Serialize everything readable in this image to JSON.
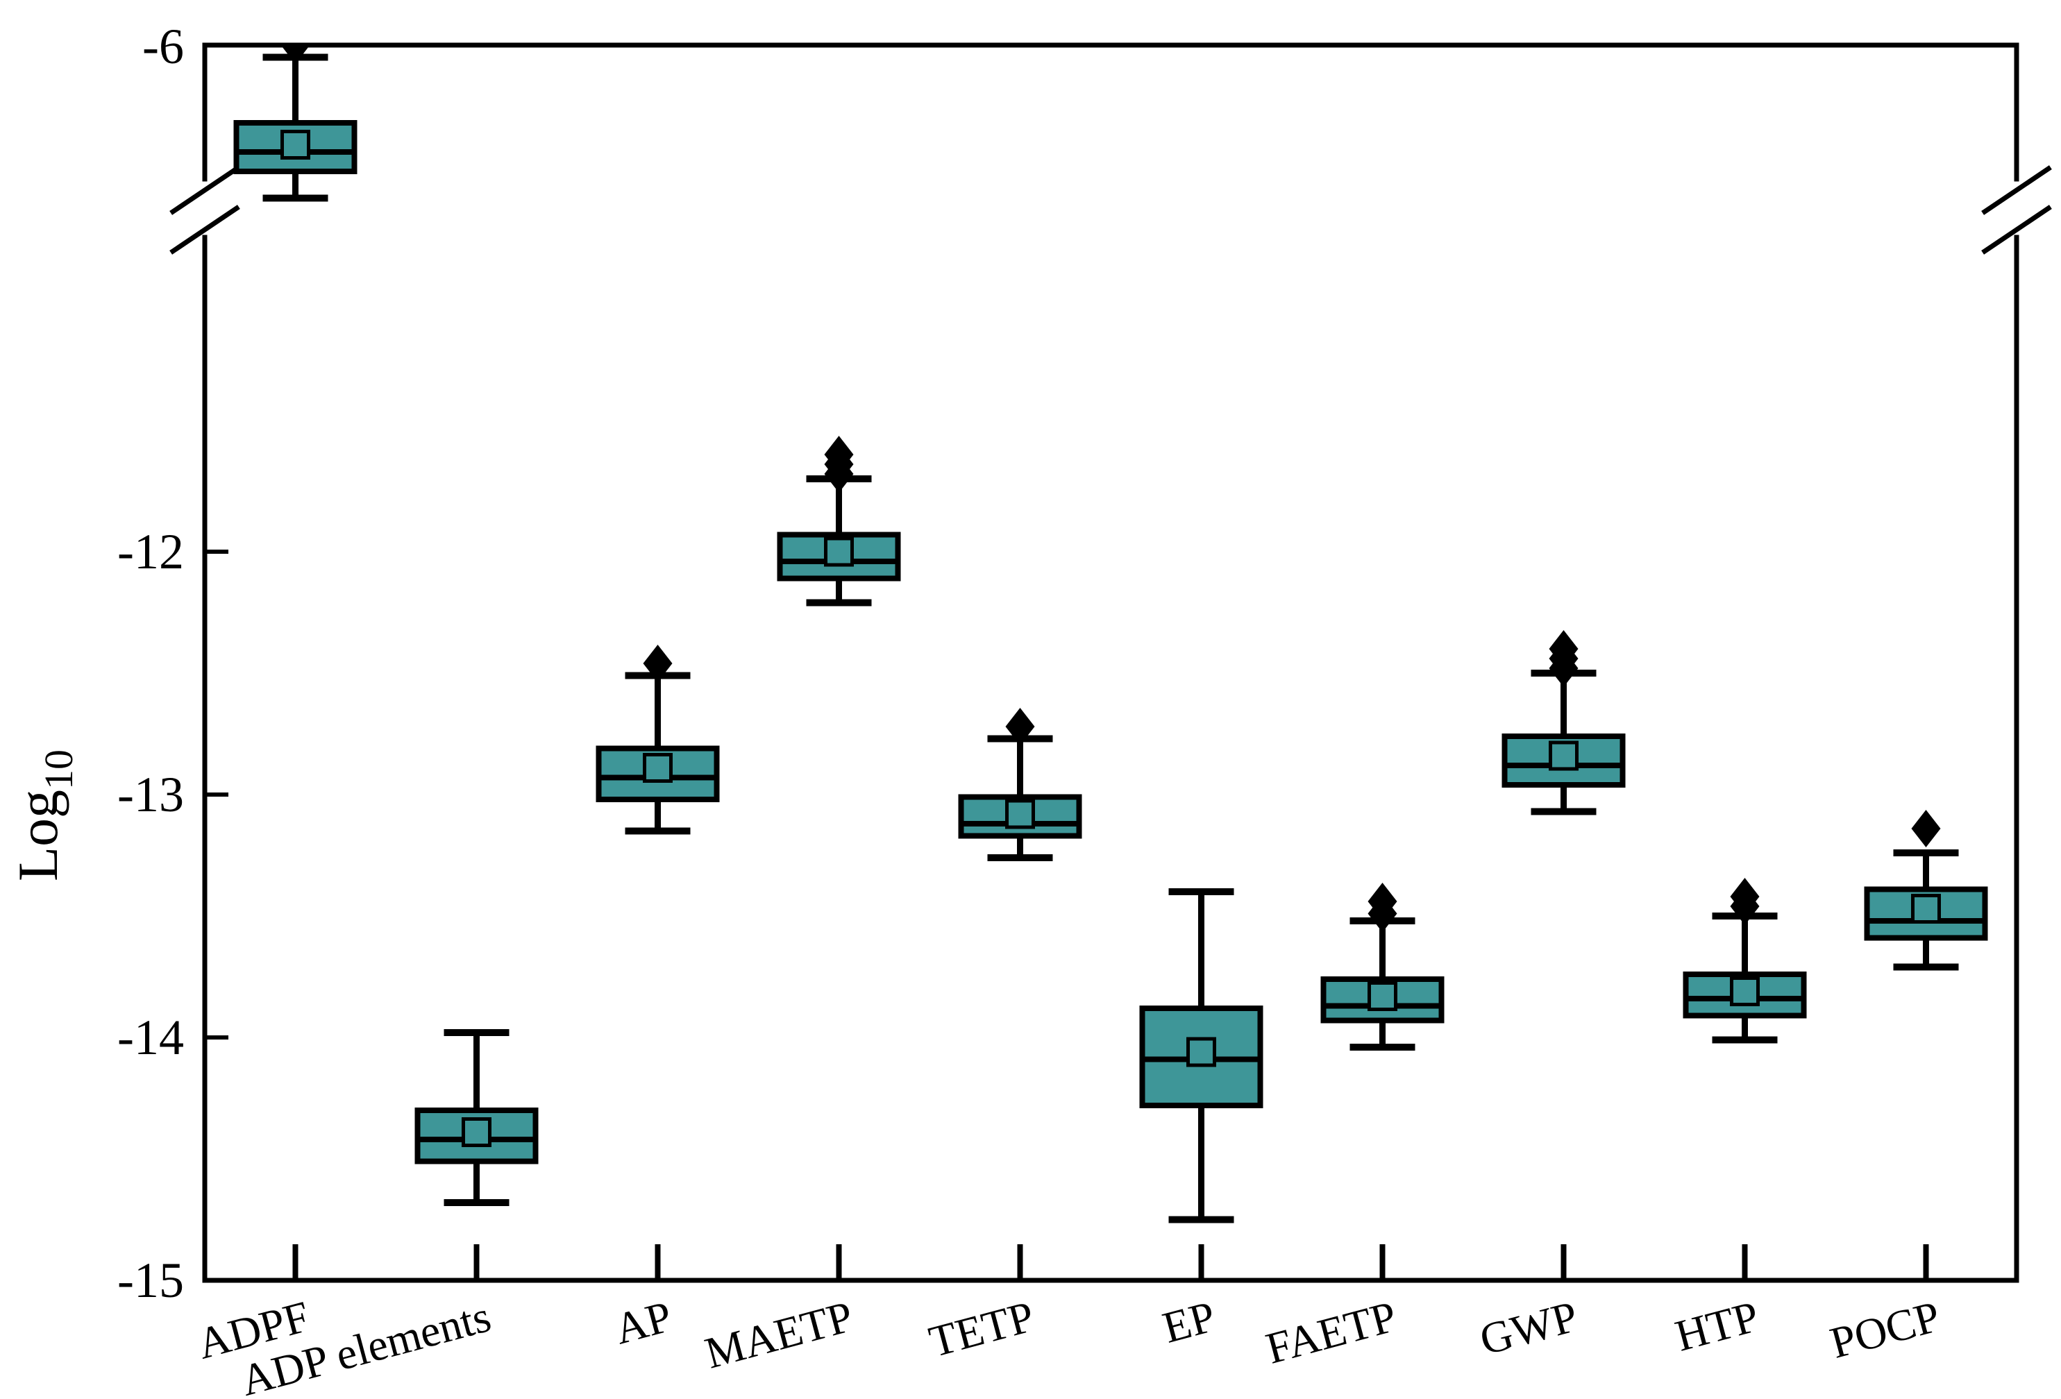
{
  "figure": {
    "background": "#ffffff",
    "description": "Box plot of Log10 environmental impact values per impact category, with broken y-axis"
  },
  "chart_data": {
    "type": "boxplot",
    "title": "",
    "ylabel_base": "Log",
    "ylabel_sub": "10",
    "box_fill": "#3E9698",
    "box_stroke": "#000000",
    "outlier_color": "#000000",
    "background": "#ffffff",
    "grid": false,
    "legend": null,
    "axis": {
      "broken_axis": true,
      "upper_tick_labels": [
        "-6"
      ],
      "upper_ticks": [
        -6
      ],
      "upper_range": [
        -6.55,
        -6
      ],
      "lower_tick_labels": [
        "-12",
        "-13",
        "-14",
        "-15"
      ],
      "lower_ticks": [
        -12,
        -13,
        -14,
        -15
      ],
      "lower_range": [
        -15,
        -10.7
      ]
    },
    "categories": [
      {
        "label": "ADPF",
        "section": "upper",
        "whisker_low": -6.63,
        "q1": -6.52,
        "median": -6.44,
        "mean": -6.41,
        "q3": -6.32,
        "whisker_high": -6.05,
        "outliers": [
          -6.0
        ]
      },
      {
        "label": "ADP elements",
        "section": "lower",
        "whisker_low": -14.68,
        "q1": -14.51,
        "median": -14.42,
        "mean": -14.39,
        "q3": -14.3,
        "whisker_high": -13.98,
        "outliers": []
      },
      {
        "label": "AP",
        "section": "lower",
        "whisker_low": -13.15,
        "q1": -13.02,
        "median": -12.93,
        "mean": -12.89,
        "q3": -12.81,
        "whisker_high": -12.51,
        "outliers": [
          -12.46
        ]
      },
      {
        "label": "MAETP",
        "section": "lower",
        "whisker_low": -12.21,
        "q1": -12.11,
        "median": -12.04,
        "mean": -12.0,
        "q3": -11.93,
        "whisker_high": -11.7,
        "outliers": [
          -11.68,
          -11.64,
          -11.6
        ]
      },
      {
        "label": "TETP",
        "section": "lower",
        "whisker_low": -13.26,
        "q1": -13.17,
        "median": -13.12,
        "mean": -13.08,
        "q3": -13.01,
        "whisker_high": -12.77,
        "outliers": [
          -12.72
        ]
      },
      {
        "label": "EP",
        "section": "lower",
        "whisker_low": -14.75,
        "q1": -14.28,
        "median": -14.09,
        "mean": -14.06,
        "q3": -13.88,
        "whisker_high": -13.4,
        "outliers": []
      },
      {
        "label": "FAETP",
        "section": "lower",
        "whisker_low": -14.04,
        "q1": -13.93,
        "median": -13.87,
        "mean": -13.83,
        "q3": -13.76,
        "whisker_high": -13.52,
        "outliers": [
          -13.49,
          -13.44
        ]
      },
      {
        "label": "GWP",
        "section": "lower",
        "whisker_low": -13.07,
        "q1": -12.96,
        "median": -12.88,
        "mean": -12.84,
        "q3": -12.76,
        "whisker_high": -12.5,
        "outliers": [
          -12.48,
          -12.44,
          -12.4
        ]
      },
      {
        "label": "HTP",
        "section": "lower",
        "whisker_low": -14.01,
        "q1": -13.91,
        "median": -13.84,
        "mean": -13.81,
        "q3": -13.74,
        "whisker_high": -13.5,
        "outliers": [
          -13.46,
          -13.42
        ]
      },
      {
        "label": "POCP",
        "section": "lower",
        "whisker_low": -13.71,
        "q1": -13.59,
        "median": -13.52,
        "mean": -13.47,
        "q3": -13.39,
        "whisker_high": -13.24,
        "outliers": [
          -13.14
        ]
      }
    ]
  }
}
